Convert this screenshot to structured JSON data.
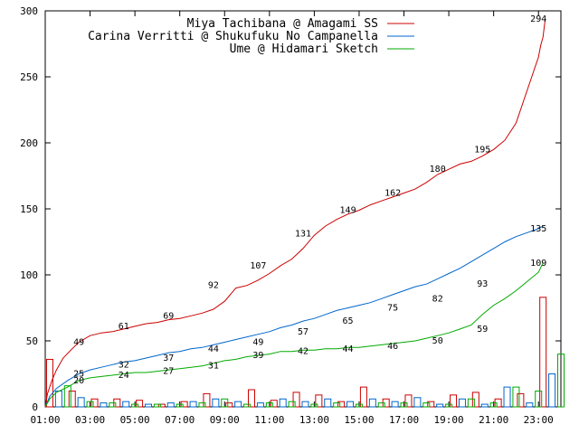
{
  "chart_data": {
    "type": "line",
    "title": "",
    "xlabel": "",
    "ylabel": "",
    "ylim": [
      0,
      300
    ],
    "yticks": [
      0,
      50,
      100,
      150,
      200,
      250,
      300
    ],
    "xticks": [
      "01:00",
      "03:00",
      "05:00",
      "07:00",
      "09:00",
      "11:00",
      "13:00",
      "15:00",
      "17:00",
      "19:00",
      "21:00",
      "23:00"
    ],
    "grid": false,
    "legend_position": "top-right",
    "series": [
      {
        "name": "Miya Tachibana @ Amagami SS",
        "color": "#cc0000",
        "points": [
          [
            0,
            0
          ],
          [
            0.1,
            10
          ],
          [
            0.3,
            20
          ],
          [
            0.5,
            28
          ],
          [
            0.8,
            37
          ],
          [
            1.2,
            44
          ],
          [
            1.5,
            49
          ],
          [
            2,
            54
          ],
          [
            2.5,
            56
          ],
          [
            3,
            57
          ],
          [
            3.5,
            59
          ],
          [
            4,
            61
          ],
          [
            4.5,
            63
          ],
          [
            5,
            64
          ],
          [
            5.5,
            66
          ],
          [
            6,
            67
          ],
          [
            6.5,
            69
          ],
          [
            7,
            71
          ],
          [
            7.5,
            74
          ],
          [
            8,
            80
          ],
          [
            8.5,
            90
          ],
          [
            9,
            92
          ],
          [
            9.5,
            96
          ],
          [
            10,
            101
          ],
          [
            10.5,
            107
          ],
          [
            11,
            112
          ],
          [
            11.5,
            120
          ],
          [
            12,
            130
          ],
          [
            12.5,
            137
          ],
          [
            13,
            142
          ],
          [
            13.5,
            146
          ],
          [
            14,
            149
          ],
          [
            14.5,
            153
          ],
          [
            15,
            156
          ],
          [
            15.5,
            159
          ],
          [
            16,
            162
          ],
          [
            16.5,
            165
          ],
          [
            17,
            170
          ],
          [
            17.5,
            176
          ],
          [
            18,
            180
          ],
          [
            18.5,
            184
          ],
          [
            19,
            186
          ],
          [
            19.5,
            190
          ],
          [
            20,
            195
          ],
          [
            20.5,
            202
          ],
          [
            21,
            215
          ],
          [
            21.5,
            240
          ],
          [
            22,
            265
          ],
          [
            22.1,
            274
          ],
          [
            22.2,
            280
          ],
          [
            22.3,
            294
          ]
        ],
        "labels": [
          [
            1.5,
            49
          ],
          [
            3.5,
            61
          ],
          [
            5.5,
            69
          ],
          [
            7.5,
            92
          ],
          [
            9.5,
            107
          ],
          [
            11.5,
            131
          ],
          [
            13.5,
            149
          ],
          [
            15.5,
            162
          ],
          [
            17.5,
            180
          ],
          [
            19.5,
            195
          ],
          [
            22,
            294
          ]
        ]
      },
      {
        "name": "Carina Verritti @ Shukufuku No Campanella",
        "color": "#0066cc",
        "points": [
          [
            0,
            0
          ],
          [
            0.2,
            8
          ],
          [
            0.5,
            14
          ],
          [
            1,
            20
          ],
          [
            1.5,
            25
          ],
          [
            2,
            28
          ],
          [
            2.5,
            30
          ],
          [
            3,
            32
          ],
          [
            3.5,
            34
          ],
          [
            4,
            35
          ],
          [
            4.5,
            37
          ],
          [
            5,
            39
          ],
          [
            5.5,
            41
          ],
          [
            6,
            42
          ],
          [
            6.5,
            44
          ],
          [
            7,
            45
          ],
          [
            7.5,
            47
          ],
          [
            8,
            49
          ],
          [
            8.5,
            51
          ],
          [
            9,
            53
          ],
          [
            9.5,
            55
          ],
          [
            10,
            57
          ],
          [
            10.5,
            60
          ],
          [
            11,
            62
          ],
          [
            11.5,
            65
          ],
          [
            12,
            67
          ],
          [
            12.5,
            70
          ],
          [
            13,
            73
          ],
          [
            13.5,
            75
          ],
          [
            14,
            77
          ],
          [
            14.5,
            79
          ],
          [
            15,
            82
          ],
          [
            15.5,
            85
          ],
          [
            16,
            88
          ],
          [
            16.5,
            91
          ],
          [
            17,
            93
          ],
          [
            17.5,
            97
          ],
          [
            18,
            101
          ],
          [
            18.5,
            105
          ],
          [
            19,
            110
          ],
          [
            19.5,
            115
          ],
          [
            20,
            120
          ],
          [
            20.5,
            125
          ],
          [
            21,
            129
          ],
          [
            21.5,
            132
          ],
          [
            22,
            135
          ],
          [
            22.2,
            137
          ]
        ],
        "labels": [
          [
            1.5,
            25
          ],
          [
            3.5,
            32
          ],
          [
            5.5,
            37
          ],
          [
            7.5,
            44
          ],
          [
            9.5,
            49
          ],
          [
            11.5,
            57
          ],
          [
            13.5,
            65
          ],
          [
            15.5,
            75
          ],
          [
            17.5,
            82
          ],
          [
            19.5,
            93
          ],
          [
            22,
            135
          ]
        ]
      },
      {
        "name": "Ume @ Hidamari Sketch",
        "color": "#00aa00",
        "points": [
          [
            0,
            0
          ],
          [
            0.2,
            6
          ],
          [
            0.5,
            11
          ],
          [
            1,
            15
          ],
          [
            1.5,
            20
          ],
          [
            2,
            22
          ],
          [
            2.5,
            23
          ],
          [
            3,
            24
          ],
          [
            3.5,
            25
          ],
          [
            4,
            26
          ],
          [
            4.5,
            26
          ],
          [
            5,
            27
          ],
          [
            5.5,
            28
          ],
          [
            6,
            29
          ],
          [
            6.5,
            30
          ],
          [
            7,
            31
          ],
          [
            7.5,
            33
          ],
          [
            8,
            35
          ],
          [
            8.5,
            36
          ],
          [
            9,
            38
          ],
          [
            9.5,
            39
          ],
          [
            10,
            40
          ],
          [
            10.5,
            42
          ],
          [
            11,
            42
          ],
          [
            11.5,
            43
          ],
          [
            12,
            43
          ],
          [
            12.5,
            44
          ],
          [
            13,
            44
          ],
          [
            13.5,
            45
          ],
          [
            14,
            45
          ],
          [
            14.5,
            46
          ],
          [
            15,
            47
          ],
          [
            15.5,
            48
          ],
          [
            16,
            49
          ],
          [
            16.5,
            50
          ],
          [
            17,
            52
          ],
          [
            17.5,
            54
          ],
          [
            18,
            56
          ],
          [
            18.5,
            59
          ],
          [
            19,
            62
          ],
          [
            19.5,
            70
          ],
          [
            20,
            77
          ],
          [
            20.5,
            82
          ],
          [
            21,
            88
          ],
          [
            21.5,
            95
          ],
          [
            22,
            102
          ],
          [
            22.2,
            109
          ]
        ],
        "labels": [
          [
            1.5,
            20
          ],
          [
            3.5,
            24
          ],
          [
            5.5,
            27
          ],
          [
            7.5,
            31
          ],
          [
            9.5,
            39
          ],
          [
            11.5,
            42
          ],
          [
            13.5,
            44
          ],
          [
            15.5,
            46
          ],
          [
            17.5,
            50
          ],
          [
            19.5,
            59
          ],
          [
            22,
            109
          ]
        ]
      }
    ],
    "bars": [
      [
        {
          "x": 0.2,
          "v": 36
        },
        {
          "x": 1.2,
          "v": 12
        },
        {
          "x": 2.2,
          "v": 6
        },
        {
          "x": 3.2,
          "v": 6
        },
        {
          "x": 4.2,
          "v": 5
        },
        {
          "x": 5.2,
          "v": 2
        },
        {
          "x": 6.2,
          "v": 4
        },
        {
          "x": 7.2,
          "v": 10
        },
        {
          "x": 8.2,
          "v": 3
        },
        {
          "x": 9.2,
          "v": 13
        },
        {
          "x": 10.2,
          "v": 5
        },
        {
          "x": 11.2,
          "v": 11
        },
        {
          "x": 12.2,
          "v": 9
        },
        {
          "x": 13.2,
          "v": 4
        },
        {
          "x": 14.2,
          "v": 15
        },
        {
          "x": 15.2,
          "v": 6
        },
        {
          "x": 16.2,
          "v": 9
        },
        {
          "x": 17.2,
          "v": 4
        },
        {
          "x": 18.2,
          "v": 9
        },
        {
          "x": 19.2,
          "v": 11
        },
        {
          "x": 20.2,
          "v": 6
        },
        {
          "x": 21.2,
          "v": 10
        },
        {
          "x": 22.2,
          "v": 83
        }
      ],
      [
        {
          "x": 0.6,
          "v": 12
        },
        {
          "x": 1.6,
          "v": 7
        },
        {
          "x": 2.6,
          "v": 3
        },
        {
          "x": 3.6,
          "v": 4
        },
        {
          "x": 4.6,
          "v": 2
        },
        {
          "x": 5.6,
          "v": 3
        },
        {
          "x": 6.6,
          "v": 4
        },
        {
          "x": 7.6,
          "v": 6
        },
        {
          "x": 8.6,
          "v": 4
        },
        {
          "x": 9.6,
          "v": 3
        },
        {
          "x": 10.6,
          "v": 6
        },
        {
          "x": 11.6,
          "v": 4
        },
        {
          "x": 12.6,
          "v": 6
        },
        {
          "x": 13.6,
          "v": 4
        },
        {
          "x": 14.6,
          "v": 6
        },
        {
          "x": 15.6,
          "v": 4
        },
        {
          "x": 16.6,
          "v": 7
        },
        {
          "x": 17.6,
          "v": 2
        },
        {
          "x": 18.6,
          "v": 6
        },
        {
          "x": 19.6,
          "v": 2
        },
        {
          "x": 20.6,
          "v": 15
        },
        {
          "x": 21.6,
          "v": 3
        },
        {
          "x": 22.6,
          "v": 25
        }
      ],
      [
        {
          "x": 1,
          "v": 16
        },
        {
          "x": 2,
          "v": 4
        },
        {
          "x": 3,
          "v": 3
        },
        {
          "x": 4,
          "v": 2
        },
        {
          "x": 5,
          "v": 2
        },
        {
          "x": 6,
          "v": 2
        },
        {
          "x": 7,
          "v": 3
        },
        {
          "x": 8,
          "v": 6
        },
        {
          "x": 9,
          "v": 2
        },
        {
          "x": 10,
          "v": 3
        },
        {
          "x": 11,
          "v": 4
        },
        {
          "x": 12,
          "v": 2
        },
        {
          "x": 13,
          "v": 3
        },
        {
          "x": 14,
          "v": 2
        },
        {
          "x": 15,
          "v": 3
        },
        {
          "x": 16,
          "v": 3
        },
        {
          "x": 17,
          "v": 3
        },
        {
          "x": 18,
          "v": 2
        },
        {
          "x": 19,
          "v": 6
        },
        {
          "x": 20,
          "v": 3
        },
        {
          "x": 21,
          "v": 15
        },
        {
          "x": 22,
          "v": 12
        },
        {
          "x": 23,
          "v": 40
        }
      ]
    ]
  }
}
